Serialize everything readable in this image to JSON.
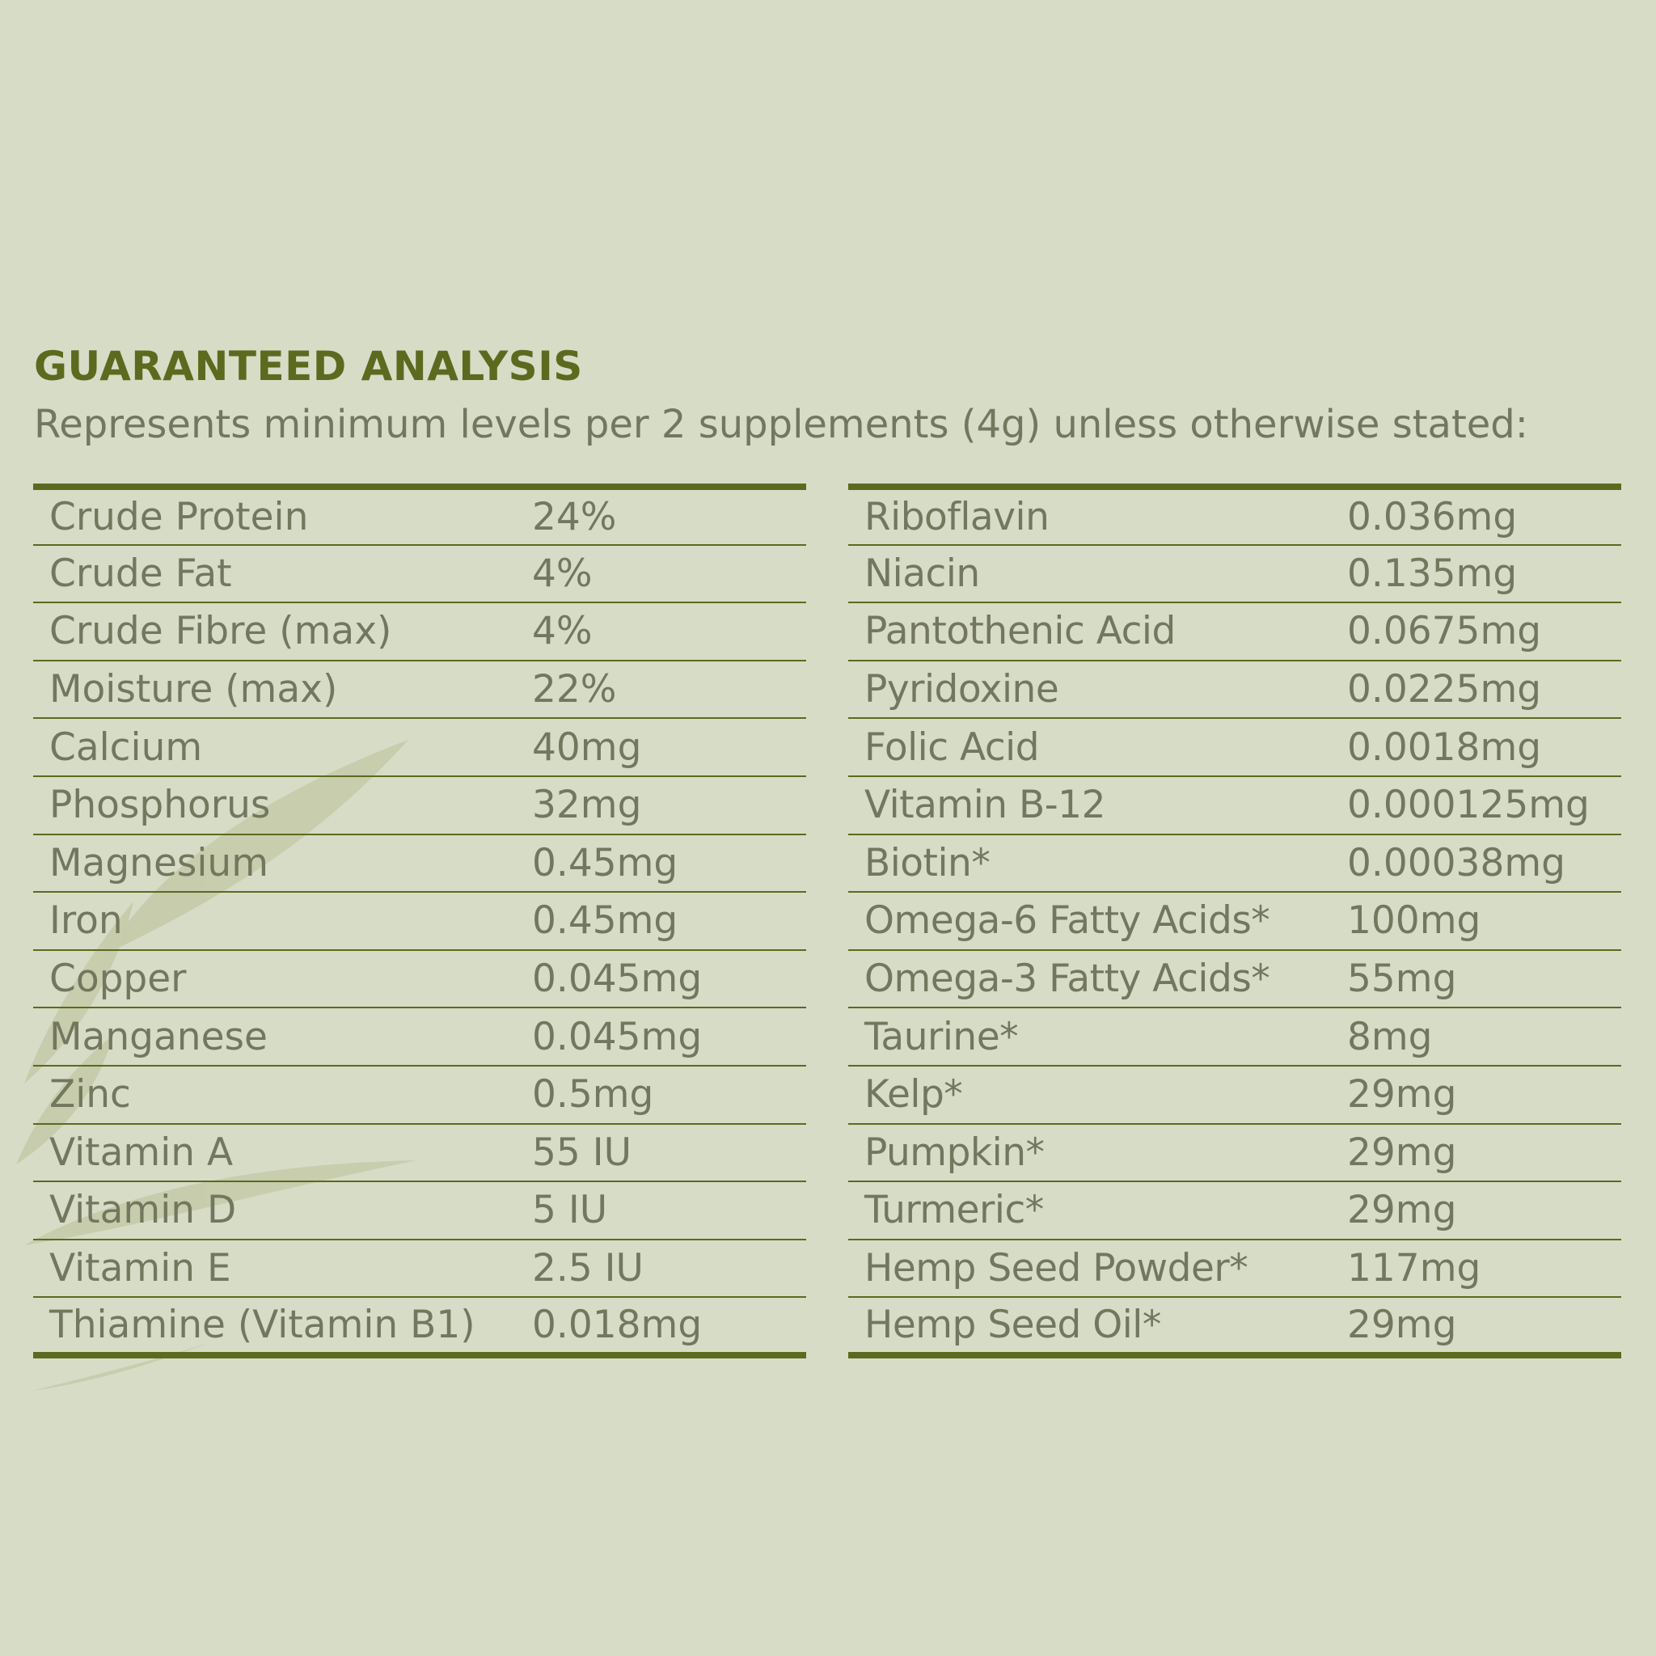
{
  "header": {
    "title": "GUARANTEED ANALYSIS",
    "subtitle": "Represents minimum levels per 2 supplements (4g) unless otherwise stated:"
  },
  "left_table": [
    {
      "name": "Crude Protein",
      "value": "24%"
    },
    {
      "name": "Crude Fat",
      "value": "4%"
    },
    {
      "name": "Crude Fibre (max)",
      "value": "4%"
    },
    {
      "name": "Moisture (max)",
      "value": "22%"
    },
    {
      "name": "Calcium",
      "value": "40mg"
    },
    {
      "name": "Phosphorus",
      "value": "32mg"
    },
    {
      "name": "Magnesium",
      "value": "0.45mg"
    },
    {
      "name": "Iron",
      "value": "0.45mg"
    },
    {
      "name": "Copper",
      "value": "0.045mg"
    },
    {
      "name": "Manganese",
      "value": "0.045mg"
    },
    {
      "name": "Zinc",
      "value": "0.5mg"
    },
    {
      "name": "Vitamin A",
      "value": "55 IU"
    },
    {
      "name": "Vitamin D",
      "value": "5 IU"
    },
    {
      "name": "Vitamin E",
      "value": "2.5 IU"
    },
    {
      "name": "Thiamine (Vitamin B1)",
      "value": "0.018mg"
    }
  ],
  "right_table": [
    {
      "name": "Riboflavin",
      "value": "0.036mg"
    },
    {
      "name": "Niacin",
      "value": "0.135mg"
    },
    {
      "name": "Pantothenic Acid",
      "value": "0.0675mg"
    },
    {
      "name": "Pyridoxine",
      "value": "0.0225mg"
    },
    {
      "name": "Folic Acid",
      "value": "0.0018mg"
    },
    {
      "name": "Vitamin B-12",
      "value": "0.000125mg"
    },
    {
      "name": "Biotin*",
      "value": "0.00038mg"
    },
    {
      "name": "Omega-6 Fatty Acids*",
      "value": "100mg"
    },
    {
      "name": "Omega-3 Fatty Acids*",
      "value": "55mg"
    },
    {
      "name": "Taurine*",
      "value": "8mg"
    },
    {
      "name": "Kelp*",
      "value": "29mg"
    },
    {
      "name": "Pumpkin*",
      "value": "29mg"
    },
    {
      "name": "Turmeric*",
      "value": "29mg"
    },
    {
      "name": "Hemp Seed Powder*",
      "value": "117mg"
    },
    {
      "name": "Hemp Seed Oil*",
      "value": "29mg"
    }
  ],
  "colors": {
    "background": "#d7dcc7",
    "accent": "#5b6a1e",
    "text": "#73775e"
  }
}
